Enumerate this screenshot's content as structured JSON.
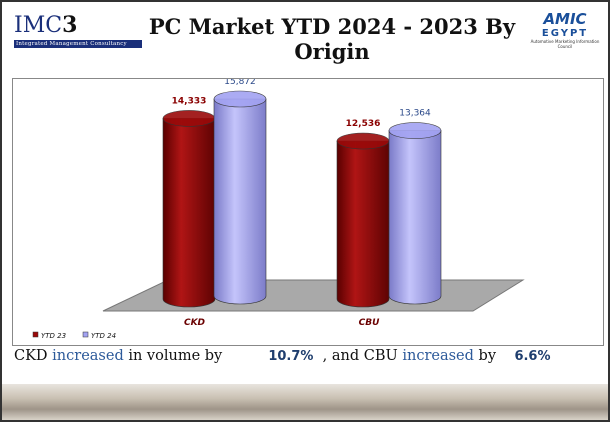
{
  "chart_data": {
    "type": "cylinder-bar",
    "title": "PC Market YTD 2024 - 2023 By Origin",
    "categories": [
      "CKD",
      "CBU"
    ],
    "series": [
      {
        "name": "YTD 23",
        "color": "#9a0a0a",
        "values": [
          14333,
          12536
        ],
        "value_labels": [
          "14,333",
          "12,536"
        ]
      },
      {
        "name": "YTD 24",
        "color": "#a3a3f2",
        "values": [
          15872,
          13364
        ],
        "value_labels": [
          "15,872",
          "13,364"
        ]
      }
    ]
  },
  "logos": {
    "left_main": "IMC",
    "left_num": "3",
    "left_sub": "Integrated Management Consultancy",
    "right_main": "AMIC",
    "right_sub": "EGYPT",
    "right_caption": "Automotive Marketing Information Council"
  },
  "summary": {
    "lead": "CKD",
    "verb1": "increased",
    "mid1": "in volume by",
    "pct1": "10.7%",
    "mid2": ", and CBU",
    "verb2": "increased",
    "mid3": "by",
    "pct2": "6.6%"
  }
}
